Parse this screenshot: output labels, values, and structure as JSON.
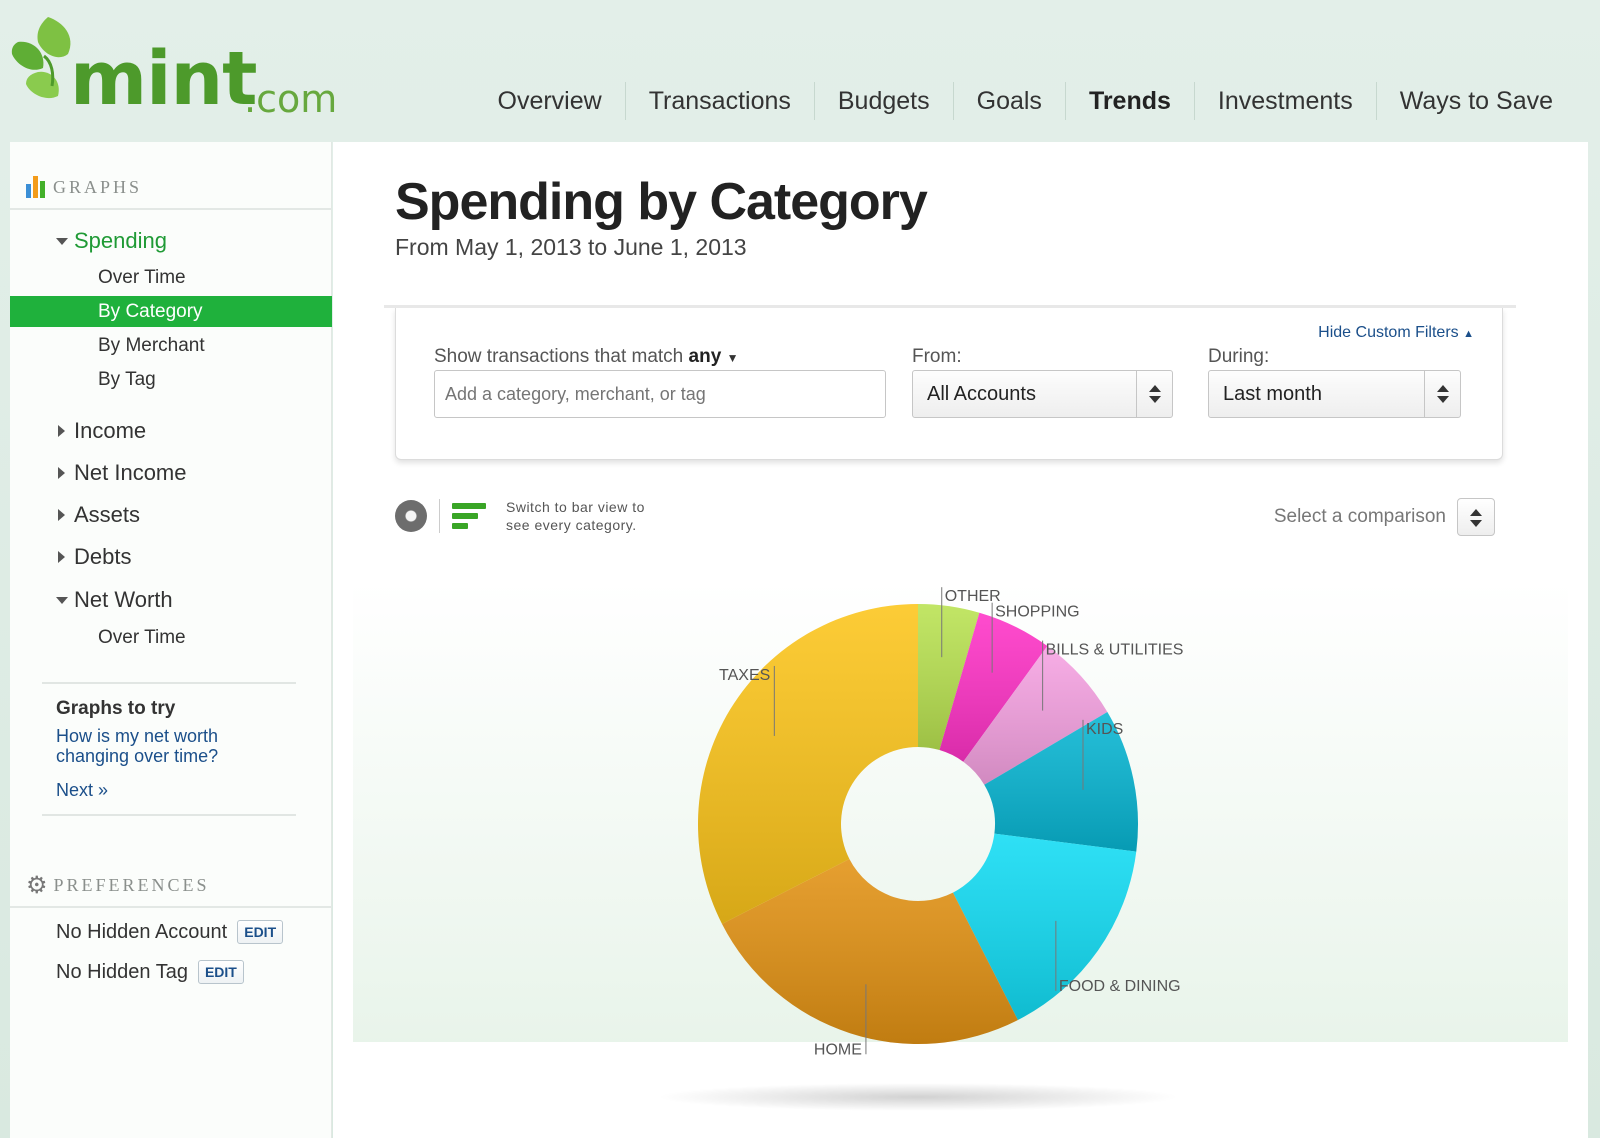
{
  "header": {
    "logo_main": "mint",
    "logo_suffix": ".com",
    "nav": [
      {
        "label": "Overview",
        "active": false
      },
      {
        "label": "Transactions",
        "active": false
      },
      {
        "label": "Budgets",
        "active": false
      },
      {
        "label": "Goals",
        "active": false
      },
      {
        "label": "Trends",
        "active": true
      },
      {
        "label": "Investments",
        "active": false
      },
      {
        "label": "Ways to Save",
        "active": false
      }
    ]
  },
  "sidebar": {
    "graphs_heading": "GRAPHS",
    "spending": {
      "label": "Spending",
      "sub": [
        "Over Time",
        "By Category",
        "By Merchant",
        "By Tag"
      ],
      "selected": "By Category"
    },
    "income": "Income",
    "net_income": "Net Income",
    "assets": "Assets",
    "debts": "Debts",
    "net_worth": {
      "label": "Net Worth",
      "sub": [
        "Over Time"
      ]
    },
    "graphs_to_try": {
      "title": "Graphs to try",
      "link": "How is my net worth changing over time?",
      "next": "Next »"
    },
    "preferences_heading": "PREFERENCES",
    "prefs": [
      {
        "label": "No Hidden Account",
        "button": "EDIT"
      },
      {
        "label": "No Hidden Tag",
        "button": "EDIT"
      }
    ]
  },
  "main": {
    "title": "Spending by Category",
    "subtitle": "From May 1, 2013 to June 1, 2013",
    "filters": {
      "hide_link": "Hide Custom Filters",
      "match_label": "Show transactions that match",
      "match_value": "any",
      "search_placeholder": "Add a category, merchant, or tag",
      "from_label": "From:",
      "from_value": "All Accounts",
      "during_label": "During:",
      "during_value": "Last month"
    },
    "view_hint": "Switch to bar view to see every category.",
    "comparison_label": "Select a comparison"
  },
  "chart_data": {
    "type": "pie",
    "style": "donut",
    "categories": [
      "OTHER",
      "SHOPPING",
      "BILLS & UTILITIES",
      "KIDS",
      "FOOD & DINING",
      "HOME",
      "TAXES"
    ],
    "values": [
      4.5,
      5.5,
      6.5,
      10.5,
      15.5,
      25.0,
      32.5
    ],
    "colors": [
      "#b9e251",
      "#ff33c7",
      "#f6a2e2",
      "#08b6d3",
      "#12dcf4",
      "#e29214",
      "#fcc51b"
    ]
  }
}
